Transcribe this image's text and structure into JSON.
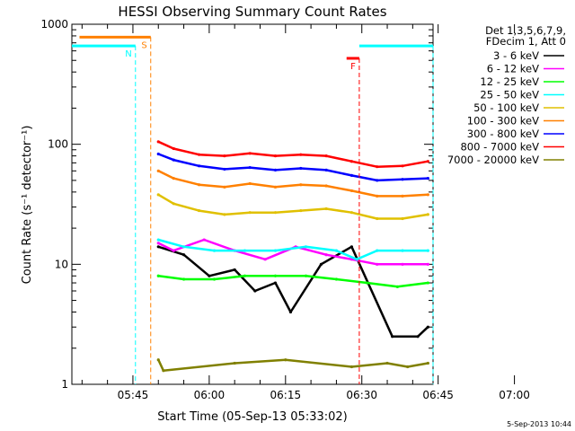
{
  "chart_data": {
    "type": "line",
    "title": "HESSI Observing Summary Count Rates",
    "xlabel": "Start Time (05-Sep-13 05:33:02)",
    "ylabel": "Count Rate (s⁻¹ detector⁻¹)",
    "yscale": "log",
    "ylim": [
      1,
      1000
    ],
    "xlim_minutes_after_0533": [
      0,
      71
    ],
    "x_ticks": [
      "05:45",
      "06:00",
      "06:15",
      "06:30",
      "06:45",
      "07:00"
    ],
    "y_ticks": [
      "1",
      "10",
      "100",
      "1000"
    ],
    "grid": false,
    "legend_position": "right",
    "legend_header": [
      "Det 1,3,5,6,7,9,",
      "FDecim 1, Att 0"
    ],
    "series": [
      {
        "name": "3 - 6 keV",
        "color": "#000000",
        "x": [
          17,
          22,
          27,
          32,
          36,
          40,
          43,
          49,
          55,
          63,
          68,
          70
        ],
        "y": [
          14,
          12,
          8,
          9,
          6,
          7,
          4,
          10,
          14,
          2.5,
          2.5,
          3
        ]
      },
      {
        "name": "6 - 12 keV",
        "color": "#ff00ff",
        "x": [
          17,
          20,
          26,
          32,
          38,
          44,
          50,
          55,
          60,
          65,
          70
        ],
        "y": [
          15,
          13,
          16,
          13,
          11,
          14,
          12,
          11,
          10,
          10,
          10
        ]
      },
      {
        "name": "12 - 25 keV",
        "color": "#00ff00",
        "x": [
          17,
          22,
          28,
          34,
          40,
          46,
          52,
          58,
          64,
          70
        ],
        "y": [
          8,
          7.5,
          7.5,
          8,
          8,
          8,
          7.5,
          7,
          6.5,
          7
        ]
      },
      {
        "name": "25 - 50 keV",
        "color": "#00ffff",
        "x": [
          17,
          22,
          28,
          34,
          40,
          46,
          52,
          56,
          60,
          65,
          70
        ],
        "y": [
          16,
          14,
          13,
          13,
          13,
          14,
          13,
          11,
          13,
          13,
          13
        ]
      },
      {
        "name": "50 - 100 keV",
        "color": "#e0c000",
        "x": [
          17,
          20,
          25,
          30,
          35,
          40,
          45,
          50,
          55,
          60,
          65,
          70
        ],
        "y": [
          38,
          32,
          28,
          26,
          27,
          27,
          28,
          29,
          27,
          24,
          24,
          26
        ]
      },
      {
        "name": "100 - 300 keV",
        "color": "#ff8000",
        "x": [
          17,
          20,
          25,
          30,
          35,
          40,
          45,
          50,
          55,
          60,
          65,
          70
        ],
        "y": [
          60,
          52,
          46,
          44,
          47,
          44,
          46,
          45,
          41,
          37,
          37,
          38
        ]
      },
      {
        "name": "300 - 800 keV",
        "color": "#0000ff",
        "x": [
          17,
          20,
          25,
          30,
          35,
          40,
          45,
          50,
          55,
          60,
          65,
          70
        ],
        "y": [
          83,
          74,
          66,
          62,
          64,
          61,
          63,
          61,
          55,
          50,
          51,
          52
        ]
      },
      {
        "name": "800 - 7000 keV",
        "color": "#ff0000",
        "x": [
          17,
          20,
          25,
          30,
          35,
          40,
          45,
          50,
          55,
          60,
          65,
          70
        ],
        "y": [
          105,
          92,
          82,
          80,
          84,
          80,
          82,
          80,
          72,
          65,
          66,
          72
        ]
      },
      {
        "name": "7000 - 20000 keV",
        "color": "#808000",
        "x": [
          17,
          18,
          32,
          42,
          55,
          62,
          66,
          70
        ],
        "y": [
          1.6,
          1.3,
          1.5,
          1.6,
          1.4,
          1.5,
          1.4,
          1.5
        ]
      }
    ],
    "annotations": [
      {
        "label": "S",
        "color": "#ff8000",
        "x_start": 1.5,
        "x_end": 15.5,
        "y": 780
      },
      {
        "label": "N",
        "color": "#00ffff",
        "x_start": 0,
        "x_end": 12.5,
        "y": 660
      },
      {
        "label": "F",
        "color": "#ff0000",
        "x_start": 54,
        "x_end": 56.5,
        "y": 520
      },
      {
        "label": "",
        "color": "#00ffff",
        "x_start": 56.5,
        "x_end": 71,
        "y": 660
      }
    ],
    "timestamp": "5-Sep-2013 10:44"
  }
}
